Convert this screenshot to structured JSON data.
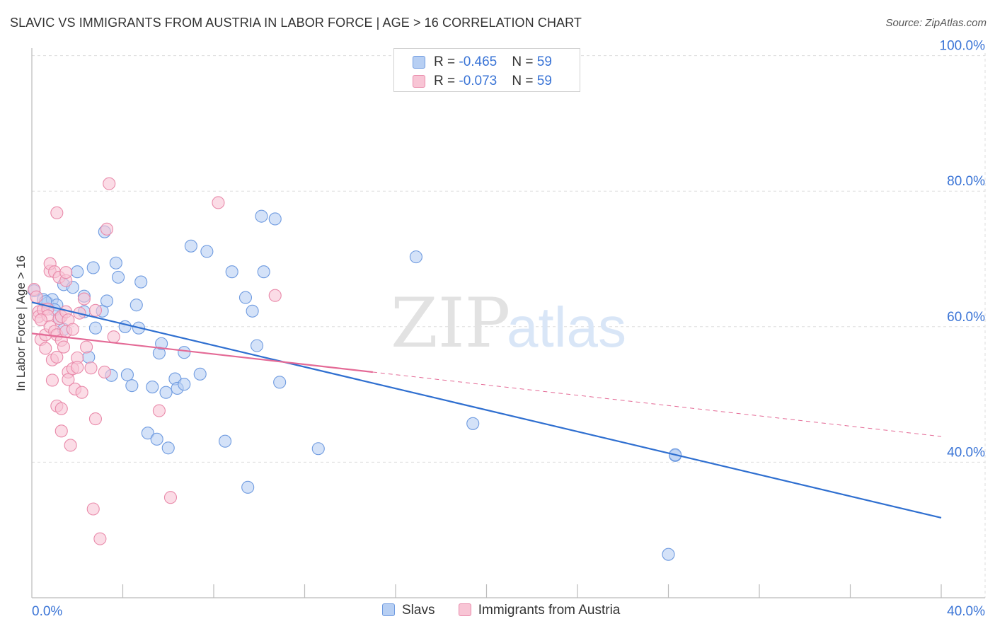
{
  "title": "SLAVIC VS IMMIGRANTS FROM AUSTRIA IN LABOR FORCE | AGE > 16 CORRELATION CHART",
  "source": "Source: ZipAtlas.com",
  "watermark": {
    "zip": "ZIP",
    "atlas": "atlas"
  },
  "legend_top": [
    {
      "r_label": "R = ",
      "r_value": "-0.465",
      "n_label": "N = ",
      "n_value": "59"
    },
    {
      "r_label": "R = ",
      "r_value": "-0.073",
      "n_label": "N = ",
      "n_value": "59"
    }
  ],
  "colors": {
    "slavs_fill": "#b7cff3",
    "slavs_stroke": "#6f9be0",
    "slavs_line": "#2f6fd0",
    "austria_fill": "#f8c5d5",
    "austria_stroke": "#e98aaa",
    "austria_line": "#e46a96",
    "axis_label": "#3a74d6",
    "grid": "#dddddd"
  },
  "chart_data": {
    "type": "scatter",
    "title": "SLAVIC VS IMMIGRANTS FROM AUSTRIA IN LABOR FORCE | AGE > 16 CORRELATION CHART",
    "ylabel": "In Labor Force | Age > 16",
    "xlabel": "",
    "xlim": [
      0,
      40
    ],
    "ylim": [
      20,
      102
    ],
    "x_tick_labels": [
      "0.0%",
      "40.0%"
    ],
    "y_ticks": [
      40,
      60,
      80,
      100
    ],
    "y_tick_labels": [
      "40.0%",
      "60.0%",
      "80.0%",
      "100.0%"
    ],
    "grid": true,
    "series": [
      {
        "name": "Slavs",
        "r": -0.465,
        "n": 59,
        "trend": {
          "x0": 0,
          "y0": 63.6,
          "x1": 40,
          "y1": 31.8,
          "solid_to": 40
        },
        "points": [
          [
            0.1,
            65.3
          ],
          [
            0.5,
            64.0
          ],
          [
            0.7,
            63.5
          ],
          [
            0.9,
            64.0
          ],
          [
            1.1,
            63.2
          ],
          [
            1.2,
            61.2
          ],
          [
            1.4,
            59.6
          ],
          [
            1.4,
            66.2
          ],
          [
            1.8,
            65.8
          ],
          [
            2.0,
            68.1
          ],
          [
            2.3,
            64.5
          ],
          [
            2.3,
            62.2
          ],
          [
            2.5,
            55.5
          ],
          [
            2.7,
            68.7
          ],
          [
            2.8,
            59.8
          ],
          [
            3.1,
            62.3
          ],
          [
            3.2,
            74.0
          ],
          [
            3.3,
            63.8
          ],
          [
            3.5,
            52.8
          ],
          [
            3.7,
            69.4
          ],
          [
            3.8,
            67.3
          ],
          [
            4.1,
            60.0
          ],
          [
            4.2,
            52.9
          ],
          [
            4.4,
            51.3
          ],
          [
            4.6,
            63.2
          ],
          [
            4.7,
            59.8
          ],
          [
            4.8,
            66.6
          ],
          [
            5.1,
            44.3
          ],
          [
            5.3,
            51.1
          ],
          [
            5.5,
            43.4
          ],
          [
            5.6,
            56.1
          ],
          [
            5.7,
            57.5
          ],
          [
            5.9,
            50.3
          ],
          [
            6.0,
            42.1
          ],
          [
            6.3,
            52.3
          ],
          [
            6.4,
            50.9
          ],
          [
            6.7,
            51.5
          ],
          [
            6.7,
            56.2
          ],
          [
            7.0,
            71.9
          ],
          [
            7.4,
            53.0
          ],
          [
            7.7,
            71.1
          ],
          [
            8.5,
            43.1
          ],
          [
            8.8,
            68.1
          ],
          [
            9.4,
            64.3
          ],
          [
            9.5,
            36.3
          ],
          [
            9.7,
            62.3
          ],
          [
            9.9,
            57.2
          ],
          [
            10.1,
            76.3
          ],
          [
            10.2,
            68.1
          ],
          [
            10.7,
            75.9
          ],
          [
            10.9,
            51.8
          ],
          [
            12.6,
            42.0
          ],
          [
            16.9,
            70.3
          ],
          [
            19.4,
            45.7
          ],
          [
            28.3,
            41.0
          ],
          [
            28.3,
            41.1
          ],
          [
            28.0,
            26.4
          ],
          [
            0.6,
            63.7
          ],
          [
            1.0,
            62.5
          ]
        ]
      },
      {
        "name": "Immigrants from Austria",
        "r": -0.073,
        "n": 59,
        "trend": {
          "x0": 0,
          "y0": 59.0,
          "x1": 40,
          "y1": 43.8,
          "solid_to": 15
        },
        "points": [
          [
            0.1,
            65.5
          ],
          [
            0.2,
            64.4
          ],
          [
            0.3,
            62.2
          ],
          [
            0.3,
            61.5
          ],
          [
            0.4,
            58.1
          ],
          [
            0.5,
            62.5
          ],
          [
            0.6,
            58.8
          ],
          [
            0.6,
            56.8
          ],
          [
            0.7,
            62.6
          ],
          [
            0.7,
            61.6
          ],
          [
            0.8,
            68.2
          ],
          [
            0.8,
            69.3
          ],
          [
            0.8,
            60.0
          ],
          [
            0.9,
            52.1
          ],
          [
            0.9,
            55.1
          ],
          [
            1.0,
            68.1
          ],
          [
            1.0,
            59.3
          ],
          [
            1.1,
            48.3
          ],
          [
            1.1,
            55.5
          ],
          [
            1.1,
            58.8
          ],
          [
            1.1,
            76.8
          ],
          [
            1.2,
            67.3
          ],
          [
            1.2,
            61.2
          ],
          [
            1.3,
            44.6
          ],
          [
            1.3,
            47.9
          ],
          [
            1.3,
            58.0
          ],
          [
            1.3,
            61.5
          ],
          [
            1.4,
            57.0
          ],
          [
            1.5,
            66.8
          ],
          [
            1.5,
            68.0
          ],
          [
            1.5,
            59.3
          ],
          [
            1.5,
            62.2
          ],
          [
            1.6,
            61.0
          ],
          [
            1.6,
            53.3
          ],
          [
            1.6,
            52.2
          ],
          [
            1.7,
            42.5
          ],
          [
            1.8,
            59.6
          ],
          [
            1.8,
            53.8
          ],
          [
            1.9,
            50.8
          ],
          [
            2.0,
            55.4
          ],
          [
            2.0,
            54.0
          ],
          [
            2.1,
            62.0
          ],
          [
            2.2,
            50.3
          ],
          [
            2.3,
            64.1
          ],
          [
            2.4,
            57.0
          ],
          [
            2.6,
            53.9
          ],
          [
            2.7,
            33.1
          ],
          [
            2.8,
            62.4
          ],
          [
            2.8,
            46.4
          ],
          [
            3.0,
            28.7
          ],
          [
            3.2,
            53.3
          ],
          [
            3.3,
            74.4
          ],
          [
            3.4,
            81.1
          ],
          [
            3.6,
            58.5
          ],
          [
            5.6,
            47.6
          ],
          [
            6.1,
            34.8
          ],
          [
            8.2,
            78.3
          ],
          [
            10.7,
            64.6
          ],
          [
            0.4,
            61.0
          ]
        ]
      }
    ]
  },
  "bottom_legend": [
    "Slavs",
    "Immigrants from Austria"
  ]
}
